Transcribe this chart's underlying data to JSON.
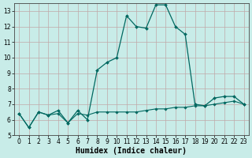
{
  "title": "",
  "xlabel": "Humidex (Indice chaleur)",
  "background_color": "#c8ece8",
  "grid_color": "#c0a8a8",
  "line_color": "#006860",
  "x_values": [
    0,
    1,
    2,
    3,
    4,
    5,
    6,
    7,
    8,
    9,
    10,
    11,
    12,
    13,
    14,
    15,
    16,
    17,
    18,
    19,
    20,
    21,
    22,
    23
  ],
  "y_line1": [
    6.4,
    5.5,
    6.5,
    6.3,
    6.6,
    5.8,
    6.6,
    6.0,
    9.2,
    9.7,
    10.0,
    12.7,
    12.0,
    11.9,
    13.4,
    13.4,
    12.0,
    11.5,
    7.0,
    6.9,
    7.4,
    7.5,
    7.5,
    7.0
  ],
  "y_line2": [
    6.4,
    5.5,
    6.5,
    6.3,
    6.4,
    5.8,
    6.4,
    6.3,
    6.5,
    6.5,
    6.5,
    6.5,
    6.5,
    6.6,
    6.7,
    6.7,
    6.8,
    6.8,
    6.9,
    6.9,
    7.0,
    7.1,
    7.2,
    7.0
  ],
  "ylim_min": 5,
  "ylim_max": 13.5,
  "xlim_min": -0.5,
  "xlim_max": 23.5,
  "yticks": [
    5,
    6,
    7,
    8,
    9,
    10,
    11,
    12,
    13
  ],
  "xticks": [
    0,
    1,
    2,
    3,
    4,
    5,
    6,
    7,
    8,
    9,
    10,
    11,
    12,
    13,
    14,
    15,
    16,
    17,
    18,
    19,
    20,
    21,
    22,
    23
  ],
  "tick_fontsize": 5.5,
  "xlabel_fontsize": 7.0,
  "linewidth1": 0.9,
  "linewidth2": 0.8,
  "markersize1": 2.0,
  "markersize2": 1.8
}
